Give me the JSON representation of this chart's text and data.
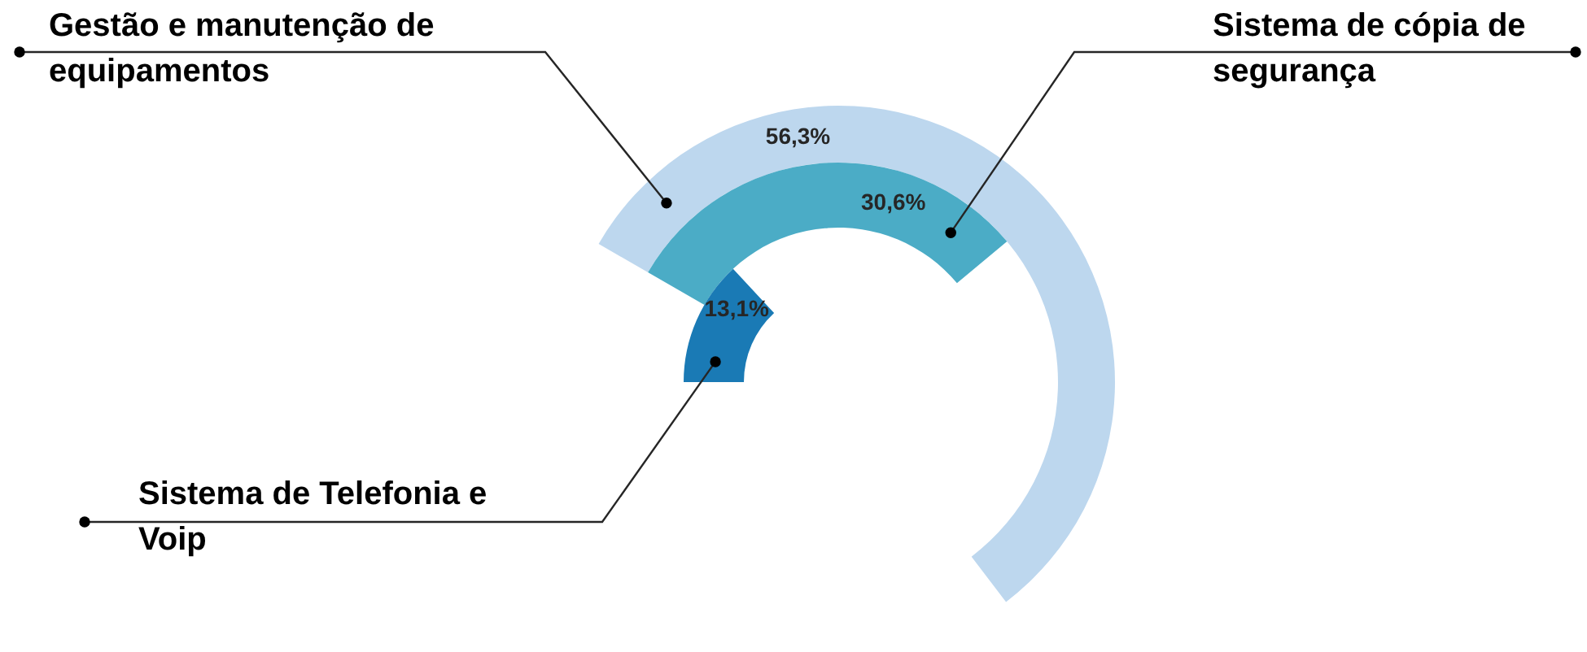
{
  "chart_data": {
    "type": "other",
    "categories": [
      "Gestão e manutenção de equipamentos",
      "Sistema de cópia de segurança",
      "Sistema de Telefonia e Voip"
    ],
    "values": [
      56.3,
      30.6,
      13.1
    ],
    "colors": [
      "#bdd7ee",
      "#4bacc6",
      "#1a7ab5"
    ],
    "value_labels": [
      "56,3%",
      "30,6%",
      "13,1%"
    ]
  }
}
